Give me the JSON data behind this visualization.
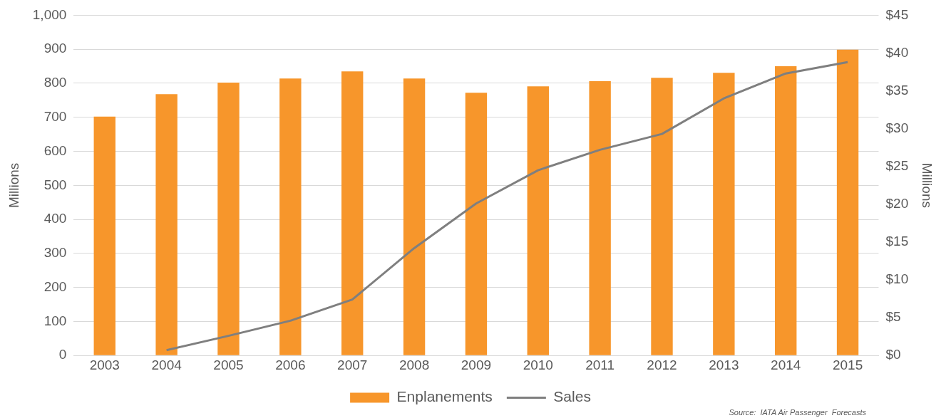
{
  "chart_data": {
    "type": "bar",
    "categories": [
      "2003",
      "2004",
      "2005",
      "2006",
      "2007",
      "2008",
      "2009",
      "2010",
      "2011",
      "2012",
      "2013",
      "2014",
      "2015"
    ],
    "series": [
      {
        "name": "Enplanements",
        "color": "#f7962b",
        "values": [
          702,
          768,
          802,
          814,
          835,
          814,
          772,
          791,
          806,
          816,
          831,
          850,
          899
        ]
      },
      {
        "name": "Sales",
        "type": "line",
        "axis": "y2",
        "color": "#7f7f7f",
        "values": [
          null,
          0.7,
          2.6,
          4.6,
          7.4,
          14.2,
          20.1,
          24.5,
          27.2,
          29.3,
          34.0,
          37.3,
          38.8
        ]
      }
    ],
    "ylabel": "Millions",
    "y2label": "Millions",
    "ylim": [
      0,
      1000
    ],
    "yticks": [
      0,
      100,
      200,
      300,
      400,
      500,
      600,
      700,
      800,
      900,
      {
        "value": 1000,
        "label": "1,000"
      }
    ],
    "y2lim": [
      0,
      45
    ],
    "y2ticks": [
      {
        "value": 0,
        "label": "$0"
      },
      {
        "value": 5,
        "label": "$5"
      },
      {
        "value": 10,
        "label": "$10"
      },
      {
        "value": 15,
        "label": "$15"
      },
      {
        "value": 20,
        "label": "$20"
      },
      {
        "value": 25,
        "label": "$25"
      },
      {
        "value": 30,
        "label": "$30"
      },
      {
        "value": 35,
        "label": "$35"
      },
      {
        "value": 40,
        "label": "$40"
      },
      {
        "value": 45,
        "label": "$45"
      }
    ],
    "grid": "y",
    "legend": "bottom",
    "marker": "none",
    "line_style": "solid",
    "annotations": [
      "Source:  IATA Air Passenger  Forecasts"
    ]
  }
}
